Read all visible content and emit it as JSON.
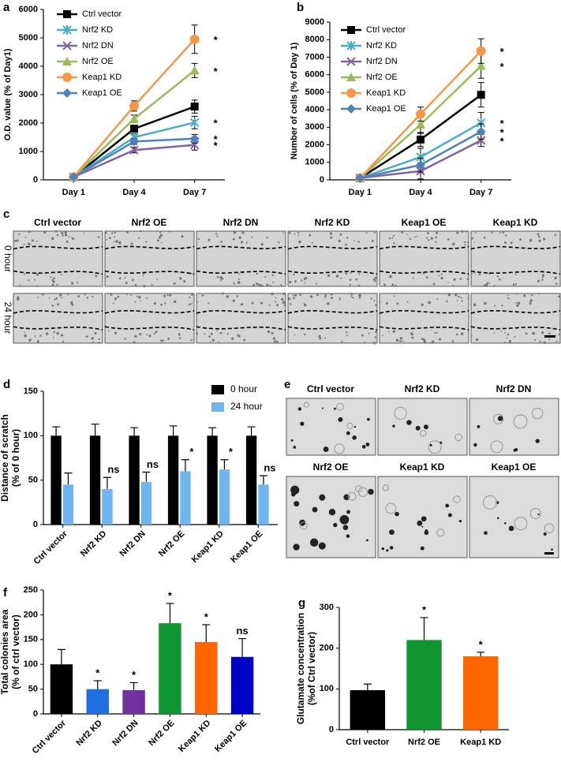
{
  "chart_data": [
    {
      "type": "line",
      "panel": "a",
      "ylabel": "O.D. value (% of Day1)",
      "categories": [
        "Day 1",
        "Day 4",
        "Day 7"
      ],
      "ylim": [
        0,
        6000
      ],
      "yticks": [
        0,
        1000,
        2000,
        3000,
        4000,
        5000,
        6000
      ],
      "series": [
        {
          "name": "Ctrl vector",
          "color": "#000000",
          "marker": "square",
          "values": [
            100,
            1800,
            2580
          ],
          "errors": [
            20,
            120,
            230
          ]
        },
        {
          "name": "Nrf2 KD",
          "color": "#4bacc6",
          "marker": "star",
          "values": [
            100,
            1500,
            2020
          ],
          "errors": [
            20,
            120,
            220
          ],
          "annotation": "*"
        },
        {
          "name": "Nrf2 DN",
          "color": "#8064a2",
          "marker": "x",
          "values": [
            100,
            1050,
            1230
          ],
          "errors": [
            20,
            100,
            180
          ],
          "annotation": "*"
        },
        {
          "name": "Nrf2 OE",
          "color": "#9bbb59",
          "marker": "triangle",
          "values": [
            100,
            2150,
            3850
          ],
          "errors": [
            20,
            130,
            250
          ],
          "annotation": "*"
        },
        {
          "name": "Keap1 KD",
          "color": "#f79646",
          "marker": "circle",
          "values": [
            100,
            2600,
            4950
          ],
          "errors": [
            20,
            180,
            500
          ],
          "annotation": "*"
        },
        {
          "name": "Keap1 OE",
          "color": "#4f81bd",
          "marker": "diamond",
          "values": [
            100,
            1350,
            1450
          ],
          "errors": [
            20,
            100,
            150
          ],
          "annotation": "*"
        }
      ]
    },
    {
      "type": "line",
      "panel": "b",
      "ylabel": "Number of cells (% of Day 1)",
      "categories": [
        "Day 1",
        "Day 4",
        "Day 7"
      ],
      "ylim": [
        0,
        9000
      ],
      "yticks": [
        0,
        1000,
        2000,
        3000,
        4000,
        5000,
        6000,
        7000,
        8000,
        9000
      ],
      "series": [
        {
          "name": "Ctrl vector",
          "color": "#000000",
          "marker": "square",
          "values": [
            100,
            2300,
            4850
          ],
          "errors": [
            50,
            400,
            700
          ]
        },
        {
          "name": "Nrf2 KD",
          "color": "#4bacc6",
          "marker": "star",
          "values": [
            100,
            1300,
            3250
          ],
          "errors": [
            50,
            500,
            600
          ],
          "annotation": "*"
        },
        {
          "name": "Nrf2 DN",
          "color": "#8064a2",
          "marker": "x",
          "values": [
            100,
            500,
            2250
          ],
          "errors": [
            50,
            450,
            350
          ],
          "annotation": "*"
        },
        {
          "name": "Nrf2 OE",
          "color": "#9bbb59",
          "marker": "triangle",
          "values": [
            100,
            3150,
            6500
          ],
          "errors": [
            50,
            500,
            700
          ],
          "annotation": "*"
        },
        {
          "name": "Keap1 KD",
          "color": "#f79646",
          "marker": "circle",
          "values": [
            100,
            3750,
            7350
          ],
          "errors": [
            50,
            400,
            700
          ],
          "annotation": "*"
        },
        {
          "name": "Keap1 OE",
          "color": "#4f81bd",
          "marker": "diamond",
          "values": [
            100,
            850,
            2750
          ],
          "errors": [
            50,
            400,
            450
          ],
          "annotation": "*"
        }
      ]
    },
    {
      "type": "bar",
      "panel": "d",
      "ylabel": [
        "Distance of scratch",
        "(% of 0 hour)"
      ],
      "categories": [
        "Ctrl vector",
        "Nrf2 KD",
        "Nrf2 DN",
        "Nrf2 OE",
        "Keap1 KD",
        "Keap1 OE"
      ],
      "ylim": [
        0,
        150
      ],
      "yticks": [
        0,
        50,
        100,
        150
      ],
      "series": [
        {
          "name": "0 hour",
          "color": "#000000",
          "values": [
            100,
            100,
            100,
            100,
            100,
            100
          ],
          "errors": [
            10,
            13,
            9,
            11,
            9,
            10
          ]
        },
        {
          "name": "24 hour",
          "color": "#6fb5f0",
          "values": [
            45,
            40,
            48,
            60,
            62,
            45
          ],
          "errors": [
            13,
            13,
            11,
            13,
            11,
            10
          ]
        }
      ],
      "annotations": [
        null,
        "ns",
        "ns",
        "*",
        "*",
        "ns"
      ]
    },
    {
      "type": "bar",
      "panel": "f",
      "ylabel": [
        "Total colonies area",
        "(% of ctrl vector)"
      ],
      "categories": [
        "Ctrl vector",
        "Nrf2 KD",
        "Nrf2 DN",
        "Nrf2 OE",
        "Keap1 KD",
        "Keap1 OE"
      ],
      "ylim": [
        0,
        250
      ],
      "yticks": [
        0,
        50,
        100,
        150,
        200,
        250
      ],
      "values": [
        100,
        50,
        48,
        183,
        145,
        115
      ],
      "errors": [
        30,
        17,
        15,
        40,
        35,
        37
      ],
      "colors": [
        "#000000",
        "#1f6fe0",
        "#7030a0",
        "#109630",
        "#ff6600",
        "#0000c8"
      ],
      "annotations": [
        null,
        "*",
        "*",
        "*",
        "*",
        "ns"
      ]
    },
    {
      "type": "bar",
      "panel": "g",
      "ylabel": [
        "Glutamate concentration",
        "(%of Ctrl vector)"
      ],
      "categories": [
        "Ctrl vector",
        "Nrf2 OE",
        "Keap1 KD"
      ],
      "ylim": [
        0,
        300
      ],
      "yticks": [
        0,
        100,
        200,
        300
      ],
      "values": [
        97,
        220,
        180
      ],
      "errors": [
        15,
        55,
        10
      ],
      "colors": [
        "#000000",
        "#109630",
        "#ff6600"
      ],
      "annotations": [
        null,
        "*",
        "*"
      ]
    }
  ],
  "scratch_images": {
    "panel": "c",
    "columns": [
      "Ctrl vector",
      "Nrf2 OE",
      "Nrf2 DN",
      "Nrf2 KD",
      "Keap1 OE",
      "Keap1 KD"
    ],
    "rows": [
      "0 hour",
      "24 hour"
    ]
  },
  "colony_images": {
    "panel": "e",
    "labels": [
      "Ctrl vector",
      "Nrf2 KD",
      "Nrf2 DN",
      "Nrf2 OE",
      "Keap1 KD",
      "Keap1 OE"
    ]
  }
}
